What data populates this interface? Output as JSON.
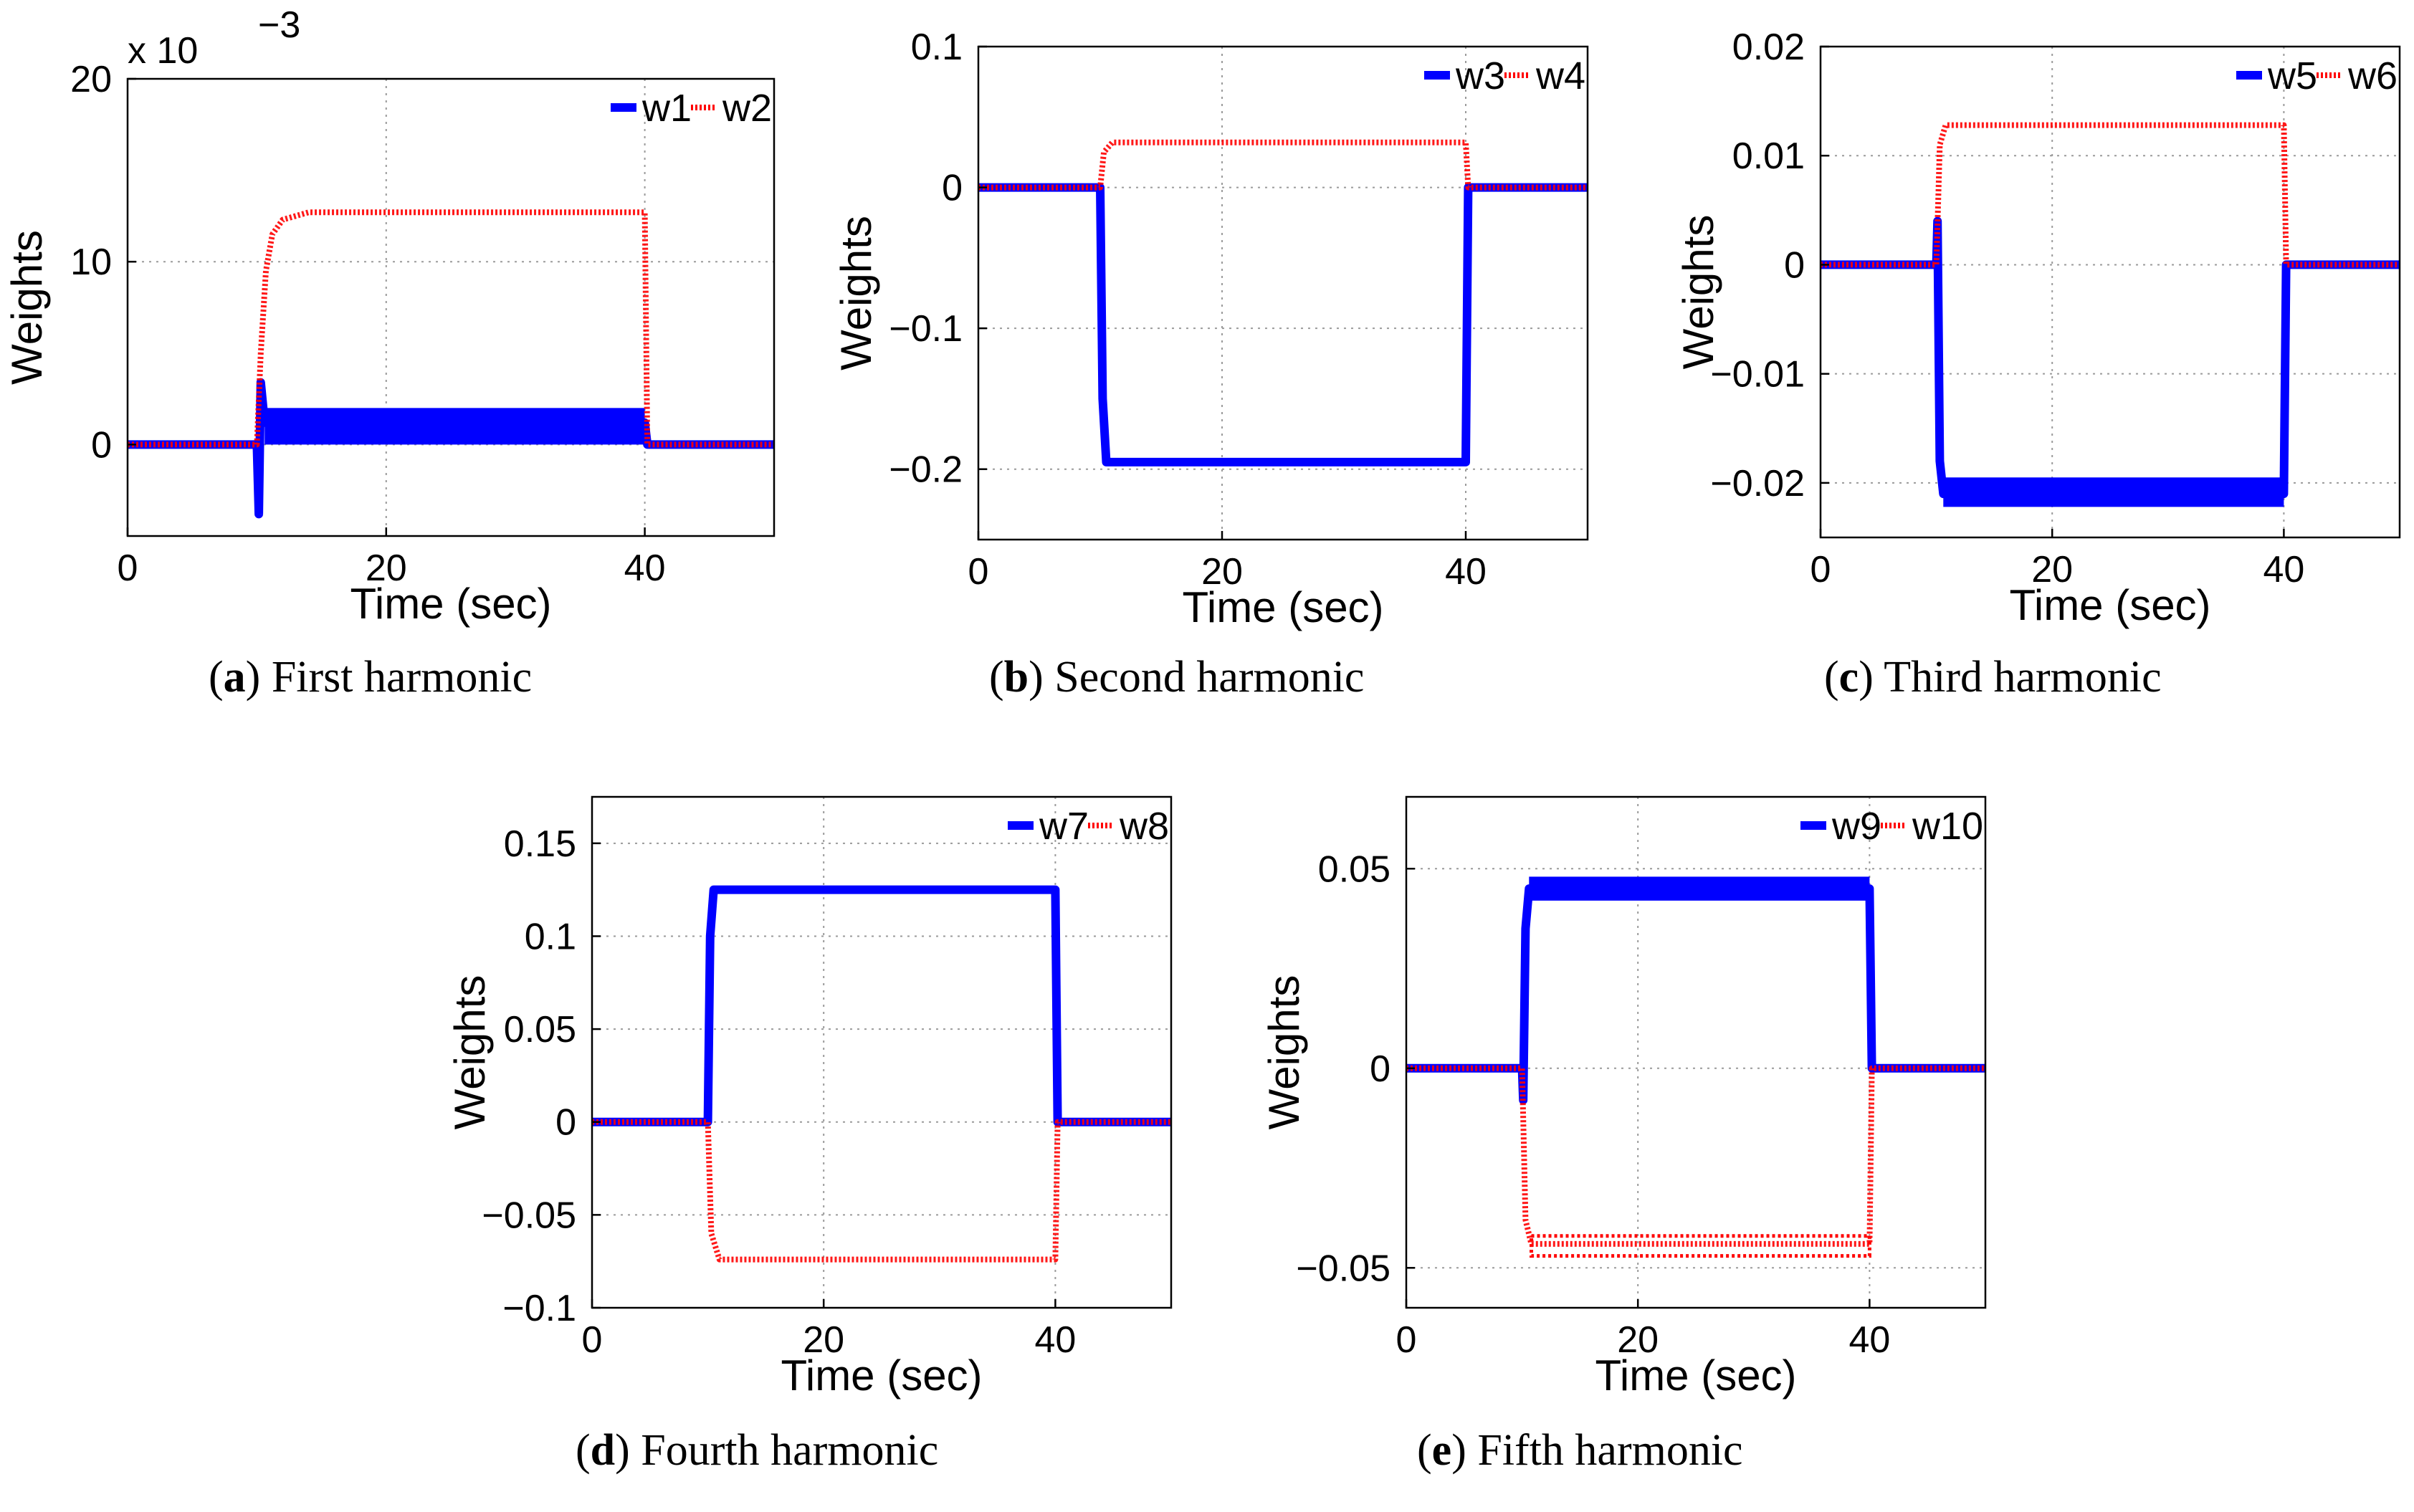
{
  "colors": {
    "w_odd": "#0000ff",
    "w_even": "#ff0000",
    "grid": "#9a9a9a"
  },
  "chart_data": [
    {
      "type": "line",
      "panel": "a",
      "caption": {
        "letter": "a",
        "text": "First harmonic"
      },
      "xlabel": "Time (sec)",
      "ylabel": "Weights",
      "xlim": [
        0,
        50
      ],
      "ylim": [
        -5,
        20
      ],
      "xticks": [
        0,
        20,
        40
      ],
      "xtick_labels": [
        "0",
        "20",
        "40"
      ],
      "yticks": [
        0,
        10,
        20
      ],
      "ytick_labels": [
        "0",
        "10",
        "20"
      ],
      "exponent_label": "x 10",
      "exponent_power": "−3",
      "legend": [
        "w1",
        "w2"
      ],
      "series": [
        {
          "name": "w1",
          "x": [
            0,
            10,
            10.15,
            10.3,
            10.6,
            40,
            40.2,
            50
          ],
          "values": [
            0,
            0,
            -3.8,
            3.4,
            1.2,
            1.2,
            0,
            0
          ],
          "band": [
            0,
            2.0
          ],
          "band_x": [
            10.6,
            40
          ]
        },
        {
          "name": "w2",
          "x": [
            0,
            10,
            10.3,
            10.7,
            11.2,
            12,
            14,
            40,
            40.2,
            50
          ],
          "values": [
            0,
            0,
            5,
            9.5,
            11.5,
            12.3,
            12.7,
            12.7,
            0,
            0
          ]
        }
      ]
    },
    {
      "type": "line",
      "panel": "b",
      "caption": {
        "letter": "b",
        "text": "Second harmonic"
      },
      "xlabel": "Time (sec)",
      "ylabel": "Weights",
      "xlim": [
        0,
        50
      ],
      "ylim": [
        -0.25,
        0.1
      ],
      "xticks": [
        0,
        20,
        40
      ],
      "xtick_labels": [
        "0",
        "20",
        "40"
      ],
      "yticks": [
        -0.2,
        -0.1,
        0,
        0.1
      ],
      "ytick_labels": [
        "−0.2",
        "−0.1",
        "0",
        "0.1"
      ],
      "legend": [
        "w3",
        "w4"
      ],
      "series": [
        {
          "name": "w3",
          "x": [
            0,
            10,
            10.2,
            10.5,
            40,
            40.2,
            50
          ],
          "values": [
            0,
            0,
            -0.15,
            -0.195,
            -0.195,
            0,
            0
          ]
        },
        {
          "name": "w4",
          "x": [
            0,
            10,
            10.3,
            11,
            40,
            40.2,
            50
          ],
          "values": [
            0,
            0,
            0.025,
            0.032,
            0.032,
            0,
            0
          ]
        }
      ]
    },
    {
      "type": "line",
      "panel": "c",
      "caption": {
        "letter": "c",
        "text": "Third harmonic"
      },
      "xlabel": "Time (sec)",
      "ylabel": "Weights",
      "xlim": [
        0,
        50
      ],
      "ylim": [
        -0.025,
        0.02
      ],
      "xticks": [
        0,
        20,
        40
      ],
      "xtick_labels": [
        "0",
        "20",
        "40"
      ],
      "yticks": [
        -0.02,
        -0.01,
        0,
        0.01,
        0.02
      ],
      "ytick_labels": [
        "−0.02",
        "−0.01",
        "0",
        "0.01",
        "0.02"
      ],
      "legend": [
        "w5",
        "w6"
      ],
      "series": [
        {
          "name": "w5",
          "x": [
            0,
            10,
            10.1,
            10.3,
            10.6,
            40,
            40.2,
            50
          ],
          "values": [
            0,
            0,
            0.004,
            -0.018,
            -0.021,
            -0.021,
            0,
            0
          ],
          "band": [
            -0.0222,
            -0.0195
          ],
          "band_x": [
            10.6,
            40
          ]
        },
        {
          "name": "w6",
          "x": [
            0,
            10,
            10.3,
            10.8,
            40,
            40.2,
            50
          ],
          "values": [
            0,
            0,
            0.011,
            0.0128,
            0.0128,
            0,
            0
          ]
        }
      ]
    },
    {
      "type": "line",
      "panel": "d",
      "caption": {
        "letter": "d",
        "text": "Fourth harmonic"
      },
      "xlabel": "Time (sec)",
      "ylabel": "Weights",
      "xlim": [
        0,
        50
      ],
      "ylim": [
        -0.1,
        0.175
      ],
      "xticks": [
        0,
        20,
        40
      ],
      "xtick_labels": [
        "0",
        "20",
        "40"
      ],
      "yticks": [
        -0.1,
        -0.05,
        0,
        0.05,
        0.1,
        0.15
      ],
      "ytick_labels": [
        "−0.1",
        "−0.05",
        "0",
        "0.05",
        "0.1",
        "0.15"
      ],
      "legend": [
        "w7",
        "w8"
      ],
      "series": [
        {
          "name": "w7",
          "x": [
            0,
            10,
            10.2,
            10.5,
            40,
            40.2,
            50
          ],
          "values": [
            0,
            0,
            0.1,
            0.125,
            0.125,
            0,
            0
          ]
        },
        {
          "name": "w8",
          "x": [
            0,
            10,
            10.3,
            11,
            40,
            40.2,
            50
          ],
          "values": [
            0,
            0,
            -0.06,
            -0.074,
            -0.074,
            0,
            0
          ]
        }
      ]
    },
    {
      "type": "line",
      "panel": "e",
      "caption": {
        "letter": "e",
        "text": "Fifth harmonic"
      },
      "xlabel": "Time (sec)",
      "ylabel": "Weights",
      "xlim": [
        0,
        50
      ],
      "ylim": [
        -0.06,
        0.068
      ],
      "xticks": [
        0,
        20,
        40
      ],
      "xtick_labels": [
        "0",
        "20",
        "40"
      ],
      "yticks": [
        -0.05,
        0,
        0.05
      ],
      "ytick_labels": [
        "−0.05",
        "0",
        "0.05"
      ],
      "legend": [
        "w9",
        "w10"
      ],
      "series": [
        {
          "name": "w9",
          "x": [
            0,
            10,
            10.1,
            10.3,
            10.6,
            40,
            40.2,
            50
          ],
          "values": [
            0,
            0,
            -0.008,
            0.035,
            0.045,
            0.045,
            0,
            0
          ],
          "band": [
            0.042,
            0.048
          ],
          "band_x": [
            10.6,
            40
          ]
        },
        {
          "name": "w10",
          "x": [
            0,
            10,
            10.3,
            10.8,
            40,
            40.2,
            50
          ],
          "values": [
            0,
            0,
            -0.038,
            -0.044,
            -0.044,
            0,
            0
          ],
          "band": [
            -0.047,
            -0.042
          ],
          "band_x": [
            10.8,
            40
          ]
        }
      ]
    }
  ]
}
